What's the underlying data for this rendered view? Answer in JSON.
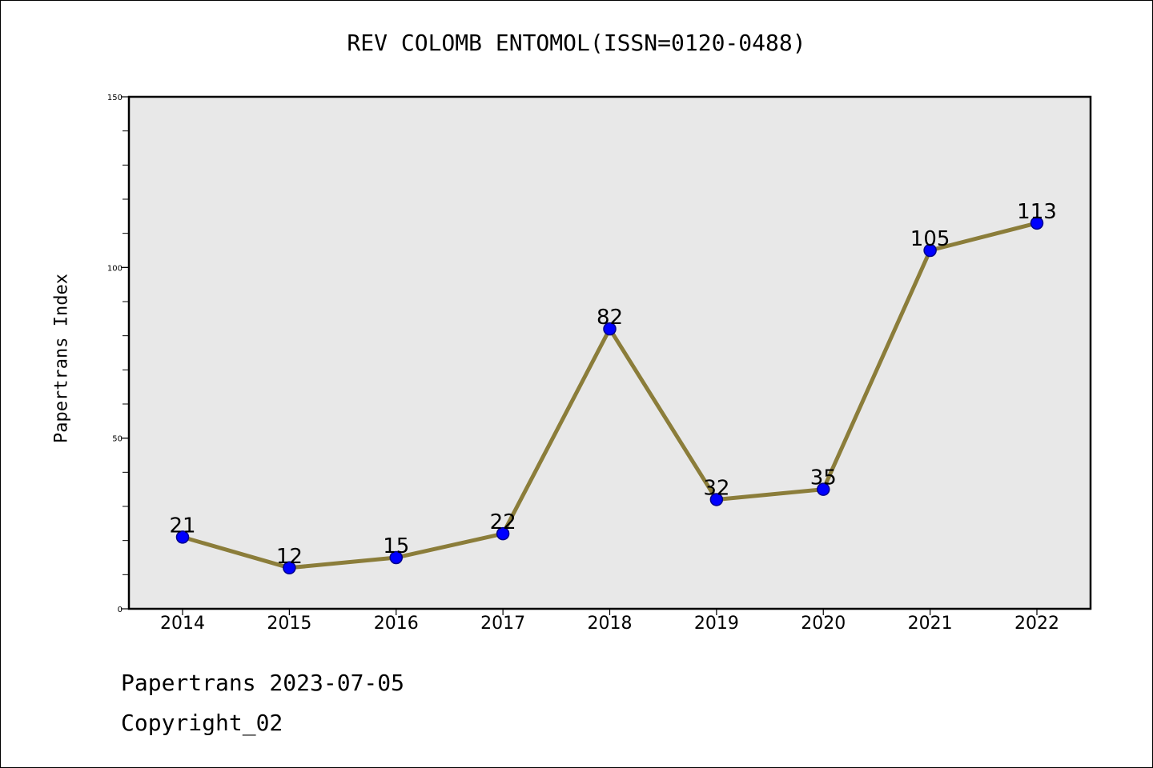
{
  "chart_data": {
    "type": "line",
    "title": "REV COLOMB ENTOMOL(ISSN=0120-0488)",
    "xlabel": "",
    "ylabel": "Papertrans Index",
    "categories": [
      "2014",
      "2015",
      "2016",
      "2017",
      "2018",
      "2019",
      "2020",
      "2021",
      "2022"
    ],
    "series": [
      {
        "values": [
          21,
          12,
          15,
          22,
          82,
          32,
          35,
          105,
          113
        ]
      }
    ],
    "data_labels": [
      "21",
      "12",
      "15",
      "22",
      "82",
      "32",
      "35",
      "105",
      "113"
    ],
    "ylim": [
      0,
      150
    ],
    "y_major_ticks": [
      0,
      50,
      100,
      150
    ],
    "y_major_tick_labels": [
      "0",
      "50",
      "100",
      "150"
    ],
    "y_minor_step": 10,
    "grid": false,
    "colors": {
      "line": "#8b7d3a",
      "marker": "#0000ff",
      "marker_edge": "#00008b",
      "plot_bg": "#e8e8e8"
    }
  },
  "footer": {
    "line1": "Papertrans 2023-07-05",
    "line2": "Copyright_02"
  }
}
